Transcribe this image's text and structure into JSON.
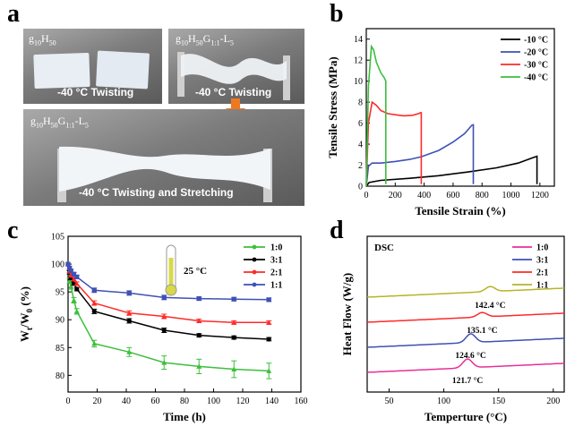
{
  "panel_labels": {
    "a": "a",
    "b": "b",
    "c": "c",
    "d": "d"
  },
  "photos": {
    "p1_label": "g10H50",
    "p1_caption": "-40 °C Twisting",
    "p2_label": "g10H50G1:1-L5",
    "p2_caption": "-40 °C Twisting",
    "p3_label": "g10H50G1:1-L5",
    "p3_caption": "-40 °C Twisting and Stretching",
    "arrow_color": "#f07820"
  },
  "chart_data": [
    {
      "id": "b",
      "type": "line",
      "xlabel": "Tensile Strain (%)",
      "ylabel": "Tensile Stress (MPa)",
      "xlim": [
        0,
        1300
      ],
      "ylim": [
        0,
        15
      ],
      "xticks": [
        0,
        200,
        400,
        600,
        800,
        1000,
        1200
      ],
      "yticks": [
        0,
        2,
        4,
        6,
        8,
        10,
        12,
        14
      ],
      "legend_position": "top-right",
      "series": [
        {
          "name": "-10 °C",
          "color": "#000000",
          "x": [
            0,
            20,
            100,
            300,
            500,
            700,
            900,
            1050,
            1150,
            1180,
            1180
          ],
          "y": [
            0,
            0.35,
            0.55,
            0.75,
            1.0,
            1.35,
            1.75,
            2.2,
            2.7,
            2.85,
            0.2
          ]
        },
        {
          "name": "-20 °C",
          "color": "#3f51b5",
          "x": [
            0,
            15,
            40,
            100,
            200,
            300,
            380,
            500,
            600,
            680,
            730,
            740,
            740
          ],
          "y": [
            0,
            1.9,
            2.2,
            2.2,
            2.35,
            2.55,
            2.8,
            3.4,
            4.2,
            5.0,
            5.8,
            5.85,
            0.2
          ]
        },
        {
          "name": "-30 °C",
          "color": "#ff2a2a",
          "x": [
            0,
            15,
            40,
            70,
            100,
            150,
            200,
            260,
            320,
            360,
            375,
            380,
            380
          ],
          "y": [
            0,
            6.0,
            8.0,
            7.7,
            7.2,
            6.9,
            6.8,
            6.7,
            6.75,
            6.9,
            7.0,
            7.0,
            0.2
          ]
        },
        {
          "name": "-40 °C",
          "color": "#3cbf3c",
          "x": [
            0,
            15,
            35,
            50,
            70,
            100,
            125,
            135,
            135
          ],
          "y": [
            0,
            9.5,
            13.3,
            13.0,
            11.8,
            10.8,
            10.3,
            10.0,
            0.2
          ]
        }
      ]
    },
    {
      "id": "c",
      "type": "line",
      "xlabel": "Time (h)",
      "ylabel_main": "W",
      "ylabel_sub1": "t",
      "ylabel_mid": "/W",
      "ylabel_sub2": "0",
      "ylabel_tail": " (%)",
      "annotation": "25 °C",
      "xlim": [
        0,
        160
      ],
      "ylim": [
        77,
        105
      ],
      "xticks": [
        0,
        20,
        40,
        60,
        80,
        100,
        120,
        140,
        160
      ],
      "yticks": [
        80,
        85,
        90,
        95,
        100,
        105
      ],
      "legend_position": "top-right",
      "series": [
        {
          "name": "1:0",
          "color": "#3cbf3c",
          "x": [
            0,
            1,
            2,
            4,
            6,
            18,
            42,
            66,
            90,
            114,
            138
          ],
          "y": [
            100,
            97.0,
            96.0,
            93.5,
            91.5,
            85.7,
            84.2,
            82.3,
            81.6,
            81.1,
            80.8
          ],
          "err": [
            0,
            0.5,
            0.5,
            0.5,
            0.5,
            0.6,
            0.8,
            1.2,
            1.3,
            1.5,
            1.4
          ]
        },
        {
          "name": "3:1",
          "color": "#000000",
          "x": [
            0,
            1,
            2,
            4,
            6,
            18,
            42,
            66,
            90,
            114,
            138
          ],
          "y": [
            100,
            98.5,
            97.5,
            96.5,
            95.5,
            91.5,
            89.8,
            88.1,
            87.2,
            86.8,
            86.5
          ],
          "err": [
            0,
            0.3,
            0.3,
            0.3,
            0.3,
            0.4,
            0.4,
            0.4,
            0.3,
            0.3,
            0.3
          ]
        },
        {
          "name": "2:1",
          "color": "#ff2a2a",
          "x": [
            0,
            1,
            2,
            4,
            6,
            18,
            42,
            66,
            90,
            114,
            138
          ],
          "y": [
            100,
            98.8,
            98.0,
            97.3,
            96.5,
            93.0,
            91.2,
            90.6,
            89.8,
            89.5,
            89.5
          ],
          "err": [
            0,
            0.3,
            0.3,
            0.3,
            0.3,
            0.4,
            0.4,
            0.4,
            0.3,
            0.3,
            0.3
          ]
        },
        {
          "name": "1:1",
          "color": "#3f51b5",
          "x": [
            0,
            1,
            2,
            4,
            6,
            18,
            42,
            66,
            90,
            114,
            138
          ],
          "y": [
            100,
            99.3,
            98.8,
            98.2,
            97.7,
            95.3,
            94.8,
            94.0,
            93.8,
            93.7,
            93.6
          ],
          "err": [
            0,
            0.3,
            0.3,
            0.3,
            0.3,
            0.4,
            0.4,
            0.4,
            0.3,
            0.3,
            0.3
          ]
        }
      ]
    },
    {
      "id": "d",
      "type": "line",
      "title": "DSC",
      "xlabel": "Temperture (°C)",
      "ylabel": "Heat Flow (W/g)",
      "xlim": [
        30,
        210
      ],
      "xticks": [
        50,
        100,
        150,
        200
      ],
      "legend_position": "top-right",
      "series": [
        {
          "name": "1:0",
          "color": "#e8309a",
          "peak_x": 121.7,
          "peak_label": "121.7 °C",
          "baseline": 0.0,
          "peak_height": 0.35
        },
        {
          "name": "3:1",
          "color": "#3f51b5",
          "peak_x": 124.6,
          "peak_label": "124.6 °C",
          "baseline": 1.0,
          "peak_height": 0.35
        },
        {
          "name": "2:1",
          "color": "#ff2a2a",
          "peak_x": 135.1,
          "peak_label": "135.1 °C",
          "baseline": 2.0,
          "peak_height": 0.18
        },
        {
          "name": "1:1",
          "color": "#b5b52a",
          "peak_x": 142.4,
          "peak_label": "142.4 °C",
          "baseline": 3.0,
          "peak_height": 0.2
        }
      ]
    }
  ]
}
